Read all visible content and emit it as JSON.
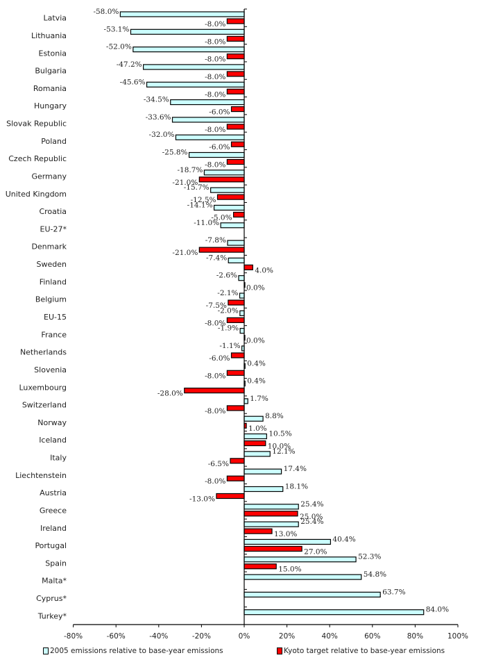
{
  "chart_data": {
    "type": "bar",
    "orientation": "horizontal",
    "title": "",
    "xlabel": "",
    "ylabel": "",
    "xlim": [
      -80,
      100
    ],
    "x_ticks": [
      "-80%",
      "-60%",
      "-40%",
      "-20%",
      "0%",
      "20%",
      "40%",
      "60%",
      "80%",
      "100%"
    ],
    "x_tick_values": [
      -80,
      -60,
      -40,
      -20,
      0,
      20,
      40,
      60,
      80,
      100
    ],
    "grid": false,
    "legend_position": "bottom",
    "categories": [
      "Latvia",
      "Lithuania",
      "Estonia",
      "Bulgaria",
      "Romania",
      "Hungary",
      "Slovak Republic",
      "Poland",
      "Czech Republic",
      "Germany",
      "United Kingdom",
      "Croatia",
      "EU-27*",
      "Denmark",
      "Sweden",
      "Finland",
      "Belgium",
      "EU-15",
      "France",
      "Netherlands",
      "Slovenia",
      "Luxembourg",
      "Switzerland",
      "Norway",
      "Iceland",
      "Italy",
      "Liechtenstein",
      "Austria",
      "Greece",
      "Ireland",
      "Portugal",
      "Spain",
      "Malta*",
      "Cyprus*",
      "Turkey*"
    ],
    "series": [
      {
        "name": "2005 emissions relative to base-year emissions",
        "color": "#CCFFFF",
        "values": [
          -58.0,
          -53.1,
          -52.0,
          -47.2,
          -45.6,
          -34.5,
          -33.6,
          -32.0,
          -25.8,
          -18.7,
          -15.7,
          -14.1,
          -11.0,
          -7.8,
          -7.4,
          -2.6,
          -2.1,
          -2.0,
          -1.9,
          -1.1,
          0.4,
          0.4,
          1.7,
          8.8,
          10.5,
          12.1,
          17.4,
          18.1,
          25.4,
          25.4,
          40.4,
          52.3,
          54.8,
          63.7,
          84.0
        ],
        "labels": [
          "-58.0%",
          "-53.1%",
          "-52.0%",
          "-47.2%",
          "-45.6%",
          "-34.5%",
          "-33.6%",
          "-32.0%",
          "-25.8%",
          "-18.7%",
          "-15.7%",
          "-14.1%",
          "-11.0%",
          "-7.8%",
          "-7.4%",
          "-2.6%",
          "-2.1%",
          "-2.0%",
          "-1.9%",
          "-1.1%",
          "0.4%",
          "0.4%",
          "1.7%",
          "8.8%",
          "10.5%",
          "12.1%",
          "17.4%",
          "18.1%",
          "25.4%",
          "25.4%",
          "40.4%",
          "52.3%",
          "54.8%",
          "63.7%",
          "84.0%"
        ]
      },
      {
        "name": "Kyoto target relative to base-year emissions",
        "color": "#FF0000",
        "values": [
          -8.0,
          -8.0,
          -8.0,
          -8.0,
          -8.0,
          -6.0,
          -8.0,
          -6.0,
          -8.0,
          -21.0,
          -12.5,
          -5.0,
          null,
          -21.0,
          4.0,
          0.0,
          -7.5,
          -8.0,
          0.0,
          -6.0,
          -8.0,
          -28.0,
          -8.0,
          1.0,
          10.0,
          -6.5,
          -8.0,
          -13.0,
          25.0,
          13.0,
          27.0,
          15.0,
          null,
          null,
          null
        ],
        "labels": [
          "-8.0%",
          "-8.0%",
          "-8.0%",
          "-8.0%",
          "-8.0%",
          "-6.0%",
          "-8.0%",
          "-6.0%",
          "-8.0%",
          "-21.0%",
          "-12.5%",
          "-5.0%",
          null,
          "-21.0%",
          "4.0%",
          "0.0%",
          "-7.5%",
          "-8.0%",
          "0.0%",
          "-6.0%",
          "-8.0%",
          "-28.0%",
          "-8.0%",
          "1.0%",
          "10.0%",
          "-6.5%",
          "-8.0%",
          "-13.0%",
          "25.0%",
          "13.0%",
          "27.0%",
          "15.0%",
          null,
          null,
          null
        ]
      }
    ]
  },
  "legend": {
    "items": [
      {
        "label": "2005 emissions relative to base-year emissions",
        "color": "#CCFFFF"
      },
      {
        "label": "Kyoto target relative to base-year emissions",
        "color": "#FF0000"
      }
    ]
  }
}
